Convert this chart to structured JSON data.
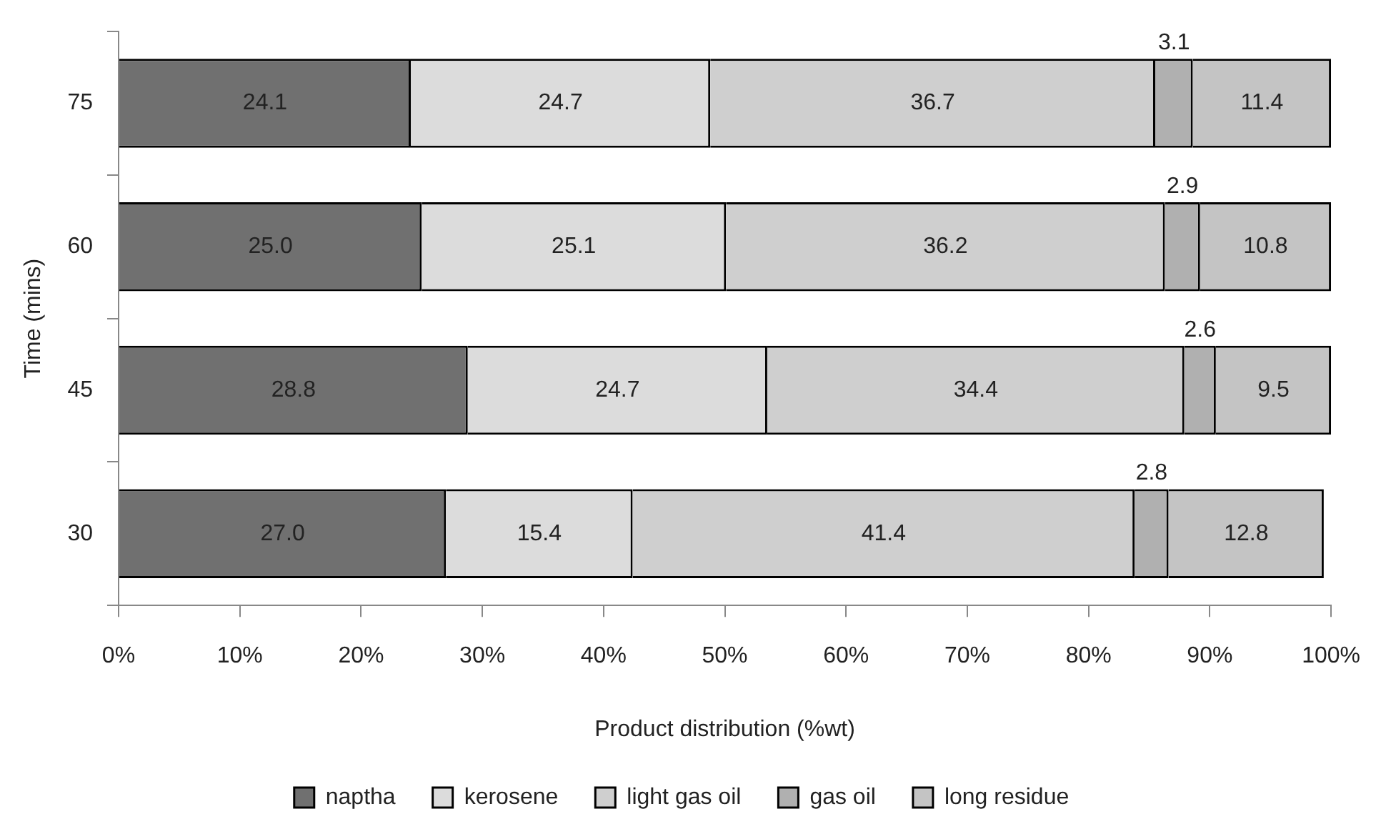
{
  "chart_data": {
    "type": "bar",
    "orientation": "horizontal",
    "stacked": true,
    "xlabel": "Product distribution (%wt)",
    "ylabel": "Time (mins)",
    "categories": [
      "75",
      "60",
      "45",
      "30"
    ],
    "series": [
      {
        "name": "naptha",
        "color": "#707070",
        "values": [
          24.1,
          25.0,
          28.8,
          27.0
        ],
        "value_labels": [
          "24.1",
          "25.0",
          "28.8",
          "27.0"
        ]
      },
      {
        "name": "kerosene",
        "color": "#dcdcdc",
        "values": [
          24.7,
          25.1,
          24.7,
          15.4
        ],
        "value_labels": [
          "24.7",
          "25.1",
          "24.7",
          "15.4"
        ]
      },
      {
        "name": "light gas oil",
        "color": "#cfcfcf",
        "values": [
          36.7,
          36.2,
          34.4,
          41.4
        ],
        "value_labels": [
          "36.7",
          "36.2",
          "34.4",
          "41.4"
        ]
      },
      {
        "name": "gas oil",
        "color": "#b0b0b0",
        "values": [
          3.1,
          2.9,
          2.6,
          2.8
        ],
        "value_labels": [
          "3.1",
          "2.9",
          "2.6",
          "2.8"
        ]
      },
      {
        "name": "long residue",
        "color": "#c4c4c4",
        "values": [
          11.4,
          10.8,
          9.5,
          12.8
        ],
        "value_labels": [
          "11.4",
          "10.8",
          "9.5",
          "12.8"
        ]
      }
    ],
    "xlim": [
      0,
      100
    ],
    "xticks": [
      {
        "value": 0,
        "label": "0%"
      },
      {
        "value": 10,
        "label": "10%"
      },
      {
        "value": 20,
        "label": "20%"
      },
      {
        "value": 30,
        "label": "30%"
      },
      {
        "value": 40,
        "label": "40%"
      },
      {
        "value": 50,
        "label": "50%"
      },
      {
        "value": 60,
        "label": "60%"
      },
      {
        "value": 70,
        "label": "70%"
      },
      {
        "value": 80,
        "label": "80%"
      },
      {
        "value": 90,
        "label": "90%"
      },
      {
        "value": 100,
        "label": "100%"
      }
    ],
    "grid": false,
    "legend": "bottom"
  }
}
